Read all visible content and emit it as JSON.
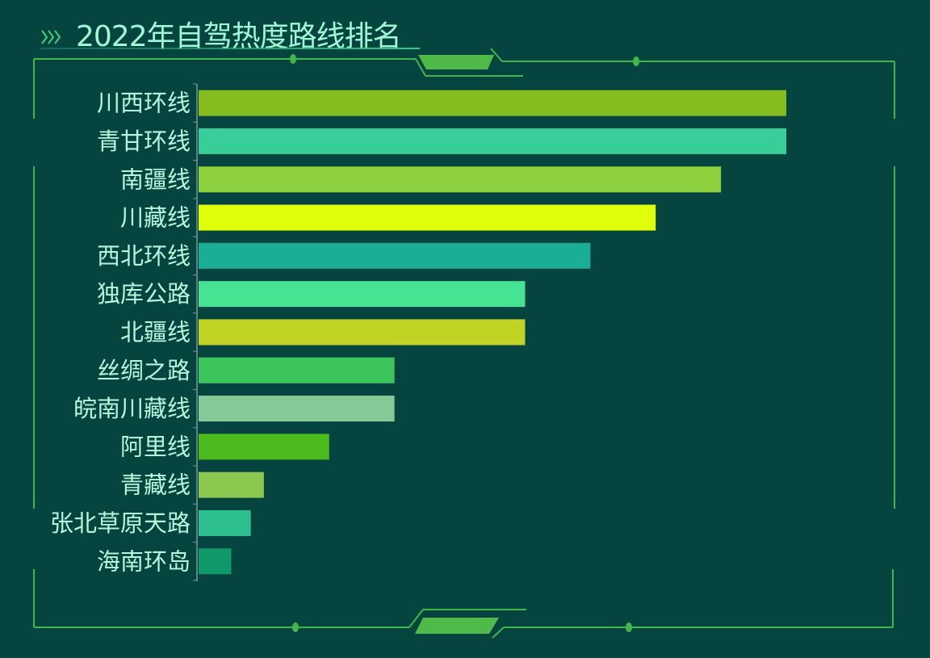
{
  "title": "2022年自驾热度路线排名",
  "chart_data": {
    "type": "bar",
    "orientation": "horizontal",
    "title": "2022年自驾热度路线排名",
    "xlabel": "",
    "ylabel": "",
    "xlim": [
      0,
      9
    ],
    "grid": false,
    "categories": [
      "川西环线",
      "青甘环线",
      "南疆线",
      "川藏线",
      "西北环线",
      "独库公路",
      "北疆线",
      "丝绸之路",
      "皖南川藏线",
      "阿里线",
      "青藏线",
      "张北草原天路",
      "海南环岛"
    ],
    "values": [
      9,
      9,
      8,
      7,
      6,
      5,
      5,
      3,
      3,
      2,
      1,
      0.8,
      0.5
    ],
    "colors": [
      "#86bd1e",
      "#38cd99",
      "#8dd13e",
      "#e0ff0a",
      "#1aae97",
      "#45e393",
      "#c1d324",
      "#3bc55c",
      "#86c998",
      "#4aba1d",
      "#8ac850",
      "#2ebf8f",
      "#0f9868"
    ]
  }
}
